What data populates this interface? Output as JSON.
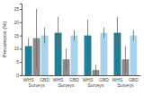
{
  "chart_data": {
    "type": "bar",
    "y_label": "Prevalence (%)",
    "categories": [
      null,
      null,
      null,
      null
    ],
    "series": [
      {
        "name": "WHS",
        "color": "#1f7f95",
        "values": [
          11,
          16,
          15,
          16
        ],
        "errors": [
          3,
          6,
          6,
          6
        ]
      },
      {
        "name": "Surveys",
        "color": "#8c8c8c",
        "values": [
          14,
          6,
          2,
          6
        ],
        "errors": [
          11,
          4,
          2,
          5
        ]
      },
      {
        "name": "GBD",
        "color": "#a9d3e8",
        "values": [
          15,
          15,
          16,
          15
        ],
        "errors": [
          3,
          2,
          2,
          2
        ]
      }
    ],
    "ylim": [
      0,
      27
    ],
    "yticks": [
      0,
      5,
      10,
      15,
      20,
      25
    ],
    "grid": false
  }
}
